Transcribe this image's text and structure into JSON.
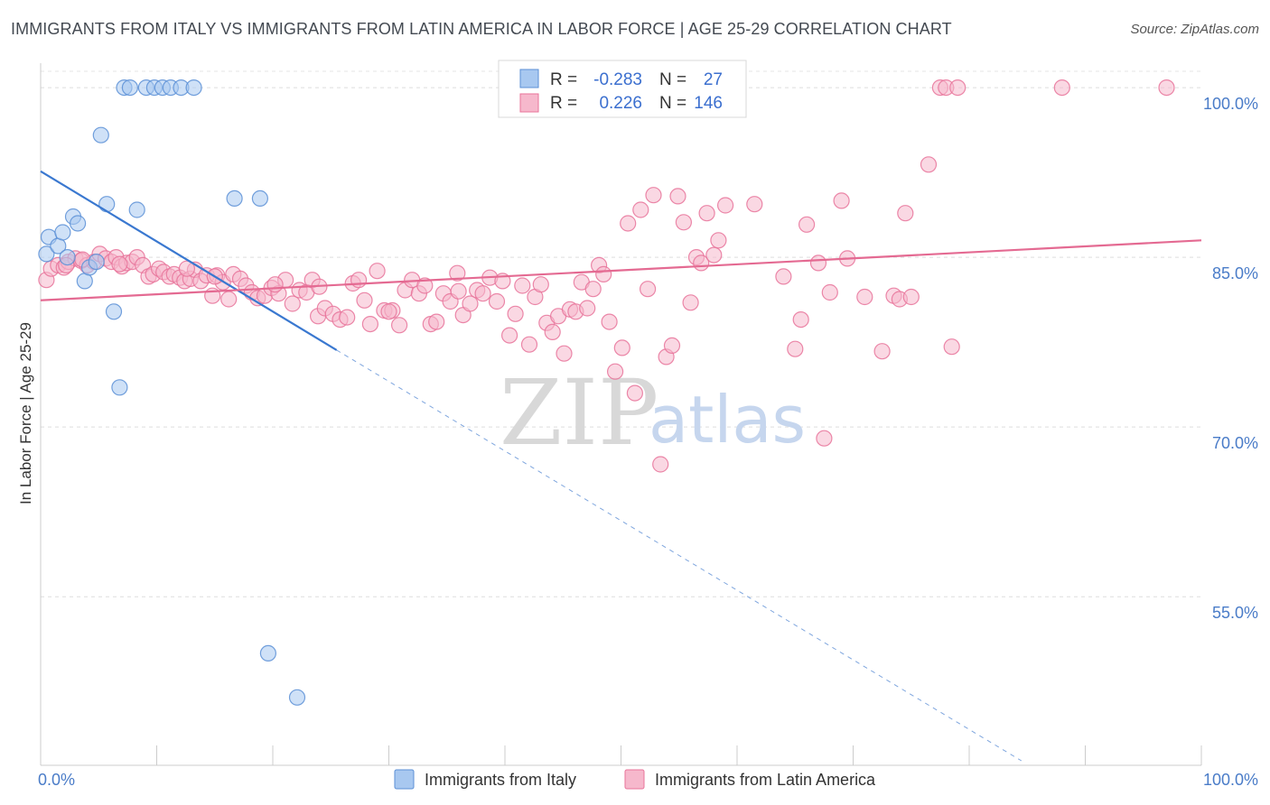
{
  "title": "IMMIGRANTS FROM ITALY VS IMMIGRANTS FROM LATIN AMERICA IN LABOR FORCE | AGE 25-29 CORRELATION CHART",
  "source": "Source: ZipAtlas.com",
  "watermark": {
    "zip": "ZIP",
    "atlas": "atlas"
  },
  "legend_top": {
    "r_label": "R =",
    "n_label": "N =",
    "rows": [
      {
        "name": "italy",
        "r": "-0.283",
        "n": "27",
        "color": "#a8c8f0"
      },
      {
        "name": "latin",
        "r": "0.226",
        "n": "146",
        "color": "#f6b8cc"
      }
    ]
  },
  "chart_data": {
    "type": "scatter",
    "title": "IMMIGRANTS FROM ITALY VS IMMIGRANTS FROM LATIN AMERICA IN LABOR FORCE | AGE 25-29 CORRELATION CHART",
    "xlabel": "",
    "ylabel": "In Labor Force | Age 25-29",
    "xlim": [
      0,
      100
    ],
    "ylim": [
      40.5,
      102
    ],
    "x_tick_labels": [
      "0.0%",
      "100.0%"
    ],
    "y_ticks": [
      {
        "value": 100,
        "label": "100.0%"
      },
      {
        "value": 85,
        "label": "85.0%"
      },
      {
        "value": 70,
        "label": "70.0%"
      },
      {
        "value": 55,
        "label": "55.0%"
      }
    ],
    "grid": true,
    "series": [
      {
        "name": "Immigrants from Italy",
        "color": "#5b8fd6",
        "fill": "#a8c8f0",
        "points": [
          [
            0.5,
            85.3
          ],
          [
            0.7,
            86.8
          ],
          [
            1.5,
            86.0
          ],
          [
            1.9,
            87.2
          ],
          [
            2.3,
            85.0
          ],
          [
            2.8,
            88.6
          ],
          [
            3.2,
            88.0
          ],
          [
            3.8,
            82.9
          ],
          [
            4.2,
            84.1
          ],
          [
            4.8,
            84.6
          ],
          [
            5.2,
            95.8
          ],
          [
            5.7,
            89.7
          ],
          [
            6.3,
            80.2
          ],
          [
            6.8,
            73.5
          ],
          [
            7.2,
            100
          ],
          [
            7.7,
            100
          ],
          [
            8.3,
            89.2
          ],
          [
            9.1,
            100
          ],
          [
            9.8,
            100
          ],
          [
            10.5,
            100
          ],
          [
            11.2,
            100
          ],
          [
            12.1,
            100
          ],
          [
            13.2,
            100
          ],
          [
            16.7,
            90.2
          ],
          [
            18.9,
            90.2
          ],
          [
            19.6,
            50.0
          ],
          [
            22.1,
            46.1
          ]
        ],
        "trend": {
          "x0": 0,
          "y0": 92.6,
          "x1": 25.5,
          "y1": 76.8,
          "dash_to_x": 84.5,
          "dash_to_y": 40.5
        }
      },
      {
        "name": "Immigrants from Latin America",
        "color": "#e8739a",
        "fill": "#f6b8cc",
        "points": [
          [
            0.5,
            83.0
          ],
          [
            0.9,
            84.0
          ],
          [
            1.5,
            84.3
          ],
          [
            2.0,
            84.1
          ],
          [
            2.4,
            84.6
          ],
          [
            3.0,
            84.9
          ],
          [
            3.5,
            84.7
          ],
          [
            4.0,
            84.3
          ],
          [
            4.6,
            84.6
          ],
          [
            5.1,
            85.3
          ],
          [
            5.6,
            84.9
          ],
          [
            6.1,
            84.6
          ],
          [
            6.5,
            85.0
          ],
          [
            7.0,
            84.2
          ],
          [
            7.4,
            84.5
          ],
          [
            7.9,
            84.6
          ],
          [
            8.3,
            85.0
          ],
          [
            8.8,
            84.3
          ],
          [
            9.3,
            83.3
          ],
          [
            9.7,
            83.5
          ],
          [
            10.2,
            84.0
          ],
          [
            10.6,
            83.7
          ],
          [
            11.1,
            83.3
          ],
          [
            11.5,
            83.5
          ],
          [
            12.0,
            83.2
          ],
          [
            12.4,
            82.9
          ],
          [
            12.9,
            83.1
          ],
          [
            13.3,
            83.9
          ],
          [
            13.8,
            82.9
          ],
          [
            14.3,
            83.4
          ],
          [
            14.8,
            81.6
          ],
          [
            15.2,
            83.4
          ],
          [
            15.7,
            82.8
          ],
          [
            16.2,
            81.3
          ],
          [
            16.6,
            83.5
          ],
          [
            17.2,
            83.1
          ],
          [
            17.7,
            82.5
          ],
          [
            18.2,
            81.9
          ],
          [
            18.7,
            81.4
          ],
          [
            19.3,
            81.6
          ],
          [
            19.9,
            82.3
          ],
          [
            20.5,
            81.8
          ],
          [
            21.1,
            83.0
          ],
          [
            21.7,
            80.9
          ],
          [
            22.3,
            82.1
          ],
          [
            22.9,
            81.9
          ],
          [
            23.4,
            83.0
          ],
          [
            23.9,
            79.8
          ],
          [
            24.5,
            80.5
          ],
          [
            25.2,
            80.0
          ],
          [
            25.8,
            79.5
          ],
          [
            26.4,
            79.7
          ],
          [
            26.9,
            82.7
          ],
          [
            27.4,
            83.0
          ],
          [
            27.9,
            81.2
          ],
          [
            28.4,
            79.1
          ],
          [
            29.0,
            83.8
          ],
          [
            29.6,
            80.3
          ],
          [
            30.3,
            80.3
          ],
          [
            30.9,
            79.0
          ],
          [
            31.4,
            82.1
          ],
          [
            32.0,
            83.0
          ],
          [
            32.6,
            81.8
          ],
          [
            33.1,
            82.5
          ],
          [
            33.6,
            79.1
          ],
          [
            34.1,
            79.3
          ],
          [
            34.7,
            81.8
          ],
          [
            35.3,
            81.1
          ],
          [
            35.9,
            83.6
          ],
          [
            36.4,
            79.9
          ],
          [
            37.0,
            80.9
          ],
          [
            37.6,
            82.1
          ],
          [
            38.1,
            81.8
          ],
          [
            38.7,
            83.2
          ],
          [
            39.3,
            81.1
          ],
          [
            39.8,
            82.9
          ],
          [
            40.4,
            78.1
          ],
          [
            40.9,
            80.0
          ],
          [
            41.5,
            82.5
          ],
          [
            42.1,
            77.3
          ],
          [
            42.6,
            81.5
          ],
          [
            43.1,
            82.6
          ],
          [
            43.6,
            79.2
          ],
          [
            44.1,
            78.4
          ],
          [
            44.6,
            79.8
          ],
          [
            45.1,
            76.5
          ],
          [
            45.6,
            80.4
          ],
          [
            46.1,
            80.2
          ],
          [
            46.6,
            82.8
          ],
          [
            47.1,
            80.5
          ],
          [
            47.6,
            82.2
          ],
          [
            48.1,
            84.3
          ],
          [
            48.5,
            83.5
          ],
          [
            49.0,
            79.3
          ],
          [
            49.5,
            74.9
          ],
          [
            50.1,
            77.0
          ],
          [
            50.6,
            88.0
          ],
          [
            51.2,
            73.0
          ],
          [
            51.7,
            89.2
          ],
          [
            52.3,
            82.2
          ],
          [
            52.8,
            90.5
          ],
          [
            53.4,
            66.7
          ],
          [
            53.9,
            76.2
          ],
          [
            54.4,
            77.2
          ],
          [
            54.9,
            90.4
          ],
          [
            55.4,
            88.1
          ],
          [
            56.0,
            81.0
          ],
          [
            56.5,
            85.0
          ],
          [
            56.9,
            84.5
          ],
          [
            57.4,
            88.9
          ],
          [
            58.0,
            85.2
          ],
          [
            58.4,
            86.5
          ],
          [
            59.0,
            89.6
          ],
          [
            60.0,
            98.5
          ],
          [
            61.5,
            89.7
          ],
          [
            64.0,
            83.3
          ],
          [
            65.0,
            76.9
          ],
          [
            65.5,
            79.5
          ],
          [
            66.0,
            87.9
          ],
          [
            67.0,
            84.5
          ],
          [
            67.5,
            69.0
          ],
          [
            68.0,
            81.9
          ],
          [
            69.0,
            90.0
          ],
          [
            69.5,
            84.9
          ],
          [
            71.0,
            81.5
          ],
          [
            72.5,
            76.7
          ],
          [
            73.5,
            81.6
          ],
          [
            74.0,
            81.3
          ],
          [
            74.5,
            88.9
          ],
          [
            75.0,
            81.5
          ],
          [
            76.5,
            93.2
          ],
          [
            77.5,
            100
          ],
          [
            78.0,
            100
          ],
          [
            78.5,
            77.1
          ],
          [
            79.0,
            100
          ],
          [
            88.0,
            100
          ],
          [
            97.0,
            100
          ],
          [
            2.2,
            84.3
          ],
          [
            3.6,
            84.8
          ],
          [
            6.8,
            84.4
          ],
          [
            12.6,
            84.0
          ],
          [
            15.0,
            83.3
          ],
          [
            20.2,
            82.6
          ],
          [
            24.0,
            82.4
          ],
          [
            30.0,
            80.2
          ],
          [
            36.0,
            82.0
          ]
        ],
        "trend": {
          "x0": 0,
          "y0": 81.2,
          "x1": 100,
          "y1": 86.5
        }
      }
    ]
  },
  "bottom_legend": [
    {
      "label": "Immigrants from Italy"
    },
    {
      "label": "Immigrants from Latin America"
    }
  ]
}
